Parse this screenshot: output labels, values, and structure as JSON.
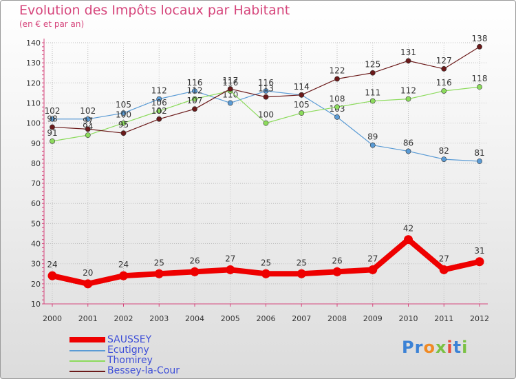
{
  "header": {
    "title": "Evolution des Impôts locaux par Habitant",
    "subtitle": "(en € et par an)"
  },
  "colors": {
    "title": "#d6467c",
    "axis": "#d6467c",
    "grid": "#bdbdbd",
    "label": "#333333",
    "legend_text": "#3d4ed8"
  },
  "chart_data": {
    "type": "line",
    "title": "Evolution des Impôts locaux par Habitant",
    "subtitle": "(en € et par an)",
    "xlabel": "",
    "ylabel": "",
    "ylim": [
      10,
      140
    ],
    "yticks": [
      10,
      20,
      30,
      40,
      50,
      60,
      70,
      80,
      90,
      100,
      110,
      120,
      130,
      140
    ],
    "x": [
      "2000",
      "2001",
      "2002",
      "2003",
      "2004",
      "2005",
      "2006",
      "2007",
      "2008",
      "2009",
      "2010",
      "2011",
      "2012"
    ],
    "grid": true,
    "legend_position": "bottom-left",
    "series": [
      {
        "name": "SAUSSEY",
        "color": "#ee0000",
        "emphasis": true,
        "values": [
          24,
          20,
          24,
          25,
          26,
          27,
          25,
          25,
          26,
          27,
          42,
          27,
          31
        ]
      },
      {
        "name": "Ecutigny",
        "color": "#5a9bd5",
        "emphasis": false,
        "values": [
          102,
          102,
          105,
          112,
          116,
          110,
          116,
          114,
          103,
          89,
          86,
          82,
          81
        ]
      },
      {
        "name": "Thomirey",
        "color": "#8cdb5c",
        "emphasis": false,
        "values": [
          91,
          94,
          100,
          106,
          112,
          116,
          100,
          105,
          108,
          111,
          112,
          116,
          118
        ]
      },
      {
        "name": "Bessey-la-Cour",
        "color": "#6b1a1a",
        "emphasis": false,
        "values": [
          98,
          97,
          95,
          102,
          107,
          117,
          113,
          114,
          122,
          125,
          131,
          127,
          138
        ]
      }
    ]
  },
  "legend": {
    "items": [
      {
        "label": "SAUSSEY"
      },
      {
        "label": "Ecutigny"
      },
      {
        "label": "Thomirey"
      },
      {
        "label": "Bessey-la-Cour"
      }
    ]
  },
  "logo": {
    "text": "Proxiti",
    "letters": [
      "P",
      "r",
      "o",
      "x",
      "i",
      "t",
      "i"
    ],
    "letter_colors": [
      "#3b82d6",
      "#3b82d6",
      "#f08a24",
      "#7ac143",
      "#e74c3c",
      "#3b82d6",
      "#7ac143"
    ]
  }
}
